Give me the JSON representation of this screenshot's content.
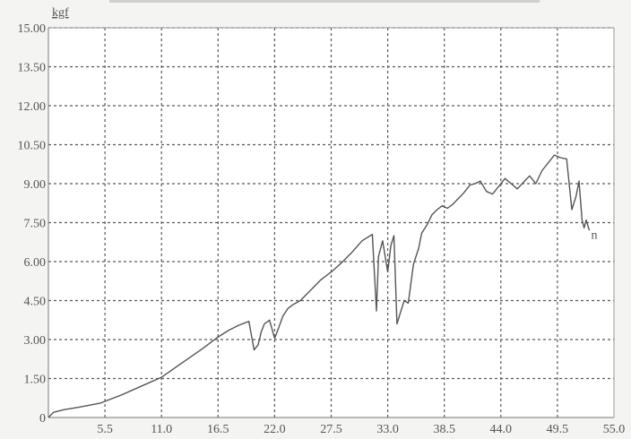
{
  "chart_data": {
    "type": "line",
    "title": "",
    "xlabel": "",
    "ylabel": "kgf",
    "xlim": [
      0,
      55.0
    ],
    "ylim": [
      0,
      15.0
    ],
    "x_ticks": [
      "5.5",
      "11.0",
      "16.5",
      "22.0",
      "27.5",
      "33.0",
      "38.5",
      "44.0",
      "49.5",
      "55.0"
    ],
    "y_ticks": [
      "0",
      "1.50",
      "3.00",
      "4.50",
      "6.00",
      "7.50",
      "9.00",
      "10.50",
      "12.00",
      "13.50",
      "15.00"
    ],
    "grid": true,
    "legend": "none",
    "annotations": [
      {
        "text": "n",
        "x": 52.6,
        "y": 7.3
      }
    ],
    "colors": {
      "line": "#555555",
      "grid": "#5a5a5a",
      "background": "#ffffff",
      "frame": "#777777"
    },
    "series": [
      {
        "x": [
          0,
          0.5,
          1.5,
          3.0,
          5.0,
          7.0,
          9.0,
          11.0,
          13.0,
          15.0,
          16.5,
          17.5,
          18.5,
          19.5,
          20.0,
          20.4,
          20.7,
          21.0,
          21.5,
          22.0,
          22.3,
          22.8,
          23.3,
          23.8,
          24.5,
          25.5,
          26.5,
          27.5,
          28.5,
          29.5,
          30.5,
          31.5,
          31.9,
          32.1,
          32.5,
          33.0,
          33.3,
          33.6,
          33.9,
          34.2,
          34.6,
          35.0,
          35.5,
          36.0,
          36.3,
          36.8,
          37.3,
          37.8,
          38.3,
          38.8,
          39.3,
          39.8,
          40.4,
          41.0,
          41.5,
          42.0,
          42.6,
          43.2,
          43.8,
          44.4,
          45.0,
          45.6,
          46.2,
          46.8,
          47.4,
          48.0,
          48.6,
          49.2,
          49.8,
          50.4,
          50.9,
          51.3,
          51.6,
          51.9,
          52.1,
          52.3,
          52.6
        ],
        "y": [
          0,
          0.2,
          0.3,
          0.4,
          0.55,
          0.85,
          1.2,
          1.55,
          2.1,
          2.65,
          3.1,
          3.35,
          3.55,
          3.7,
          2.6,
          2.8,
          3.3,
          3.6,
          3.75,
          3.05,
          3.35,
          3.9,
          4.2,
          4.35,
          4.5,
          4.9,
          5.3,
          5.6,
          5.95,
          6.35,
          6.8,
          7.05,
          4.1,
          6.2,
          6.8,
          5.6,
          6.6,
          7.0,
          3.6,
          4.0,
          4.5,
          4.4,
          5.9,
          6.5,
          7.1,
          7.4,
          7.8,
          8.0,
          8.15,
          8.05,
          8.2,
          8.4,
          8.65,
          8.95,
          9.0,
          9.1,
          8.7,
          8.6,
          8.9,
          9.2,
          9.0,
          8.8,
          9.05,
          9.3,
          9.0,
          9.5,
          9.8,
          10.1,
          10.0,
          9.95,
          8.0,
          8.5,
          9.1,
          7.6,
          7.3,
          7.6,
          7.2
        ]
      }
    ]
  }
}
